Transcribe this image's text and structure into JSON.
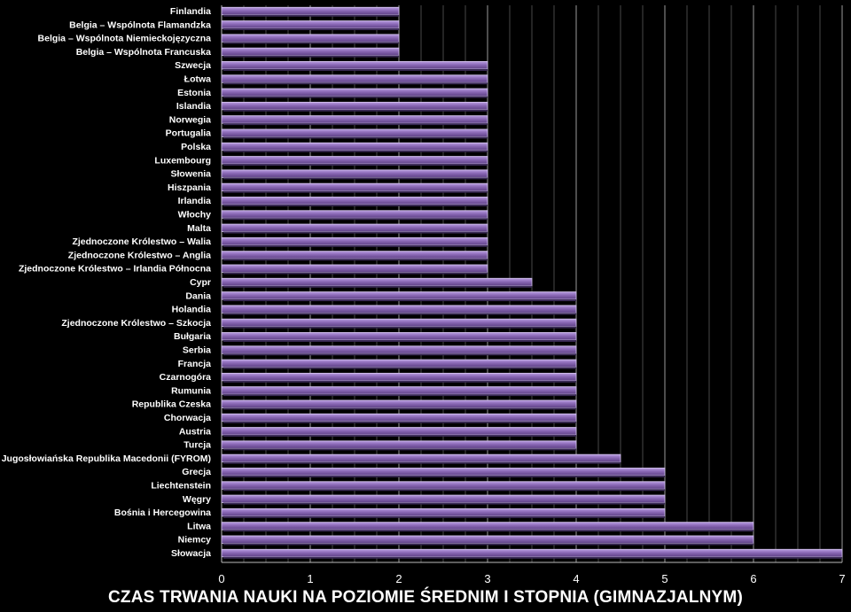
{
  "chart_data": {
    "type": "bar",
    "orientation": "horizontal",
    "title": "CZAS TRWANIA NAUKI NA POZIOMIE  ŚREDNIM I STOPNIA (GIMNAZJALNYM)",
    "xlim": [
      0,
      7
    ],
    "xticks": [
      0,
      1,
      2,
      3,
      4,
      5,
      6,
      7
    ],
    "grid": true,
    "bar_color": "#8a68b5",
    "background": "#000000",
    "categories": [
      "Finlandia",
      "Belgia – Wspólnota Flamandzka",
      "Belgia – Wspólnota Niemieckojęzyczna",
      "Belgia – Wspólnota Francuska",
      "Szwecja",
      "Łotwa",
      "Estonia",
      "Islandia",
      "Norwegia",
      "Portugalia",
      "Polska",
      "Luxembourg",
      "Słowenia",
      "Hiszpania",
      "Irlandia",
      "Włochy",
      "Malta",
      "Zjednoczone Królestwo – Walia",
      "Zjednoczone Królestwo – Anglia",
      "Zjednoczone Królestwo – Irlandia Północna",
      "Cypr",
      "Dania",
      "Holandia",
      "Zjednoczone Królestwo – Szkocja",
      "Bułgaria",
      "Serbia",
      "Francja",
      "Czarnogóra",
      "Rumunia",
      "Republika Czeska",
      "Chorwacja",
      "Austria",
      "Turcja",
      "Była Jugosłowiańska Republika Macedonii (FYROM)",
      "Grecja",
      "Liechtenstein",
      "Węgry",
      "Bośnia i Hercegowina",
      "Litwa",
      "Niemcy",
      "Słowacja"
    ],
    "values": [
      2,
      2,
      2,
      2,
      3,
      3,
      3,
      3,
      3,
      3,
      3,
      3,
      3,
      3,
      3,
      3,
      3,
      3,
      3,
      3,
      3.5,
      4,
      4,
      4,
      4,
      4,
      4,
      4,
      4,
      4,
      4,
      4,
      4,
      4.5,
      5,
      5,
      5,
      5,
      6,
      6,
      7
    ]
  }
}
